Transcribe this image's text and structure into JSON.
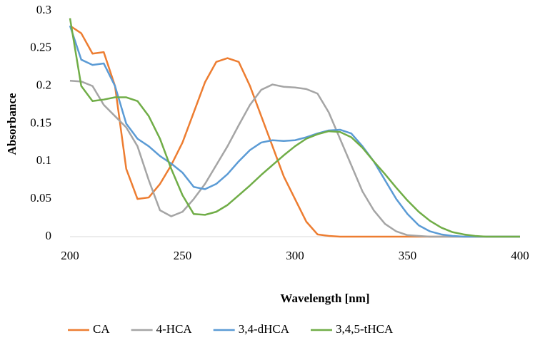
{
  "chart_data": {
    "type": "line",
    "x_label": "Wavelength [nm]",
    "y_label": "Absorbance",
    "x": [
      200,
      205,
      210,
      215,
      220,
      225,
      230,
      235,
      240,
      245,
      250,
      255,
      260,
      265,
      270,
      275,
      280,
      285,
      290,
      295,
      300,
      305,
      310,
      315,
      320,
      325,
      330,
      335,
      340,
      345,
      350,
      355,
      360,
      365,
      370,
      375,
      380,
      385,
      390,
      395,
      400
    ],
    "series": [
      {
        "name": "CA",
        "color": "#ed7d31",
        "values": [
          0.28,
          0.27,
          0.243,
          0.245,
          0.2,
          0.09,
          0.05,
          0.052,
          0.07,
          0.095,
          0.125,
          0.165,
          0.205,
          0.232,
          0.237,
          0.232,
          0.2,
          0.16,
          0.12,
          0.08,
          0.05,
          0.02,
          0.003,
          0.001,
          0,
          0,
          0,
          0,
          0,
          0,
          0,
          0,
          0,
          0,
          0,
          0,
          0,
          0,
          0,
          0,
          0
        ]
      },
      {
        "name": "4-HCA",
        "color": "#a5a5a5",
        "values": [
          0.207,
          0.206,
          0.2,
          0.175,
          0.16,
          0.145,
          0.12,
          0.075,
          0.035,
          0.027,
          0.033,
          0.05,
          0.07,
          0.095,
          0.12,
          0.148,
          0.175,
          0.195,
          0.202,
          0.199,
          0.198,
          0.196,
          0.19,
          0.165,
          0.13,
          0.095,
          0.06,
          0.035,
          0.017,
          0.007,
          0.002,
          0.001,
          0,
          0,
          0,
          0,
          0,
          0,
          0,
          0,
          0
        ]
      },
      {
        "name": "3,4-dHCA",
        "color": "#5b9bd5",
        "values": [
          0.28,
          0.235,
          0.228,
          0.23,
          0.2,
          0.15,
          0.13,
          0.12,
          0.107,
          0.097,
          0.085,
          0.066,
          0.063,
          0.07,
          0.083,
          0.1,
          0.115,
          0.125,
          0.128,
          0.127,
          0.128,
          0.132,
          0.137,
          0.141,
          0.142,
          0.137,
          0.12,
          0.1,
          0.075,
          0.05,
          0.03,
          0.015,
          0.007,
          0.003,
          0.001,
          0,
          0,
          0,
          0,
          0,
          0
        ]
      },
      {
        "name": "3,4,5-tHCA",
        "color": "#70ad47",
        "values": [
          0.29,
          0.2,
          0.18,
          0.182,
          0.185,
          0.185,
          0.18,
          0.16,
          0.13,
          0.09,
          0.055,
          0.03,
          0.029,
          0.033,
          0.042,
          0.055,
          0.068,
          0.082,
          0.095,
          0.108,
          0.12,
          0.13,
          0.136,
          0.14,
          0.139,
          0.132,
          0.118,
          0.1,
          0.083,
          0.065,
          0.048,
          0.033,
          0.021,
          0.012,
          0.006,
          0.003,
          0.001,
          0,
          0,
          0,
          0
        ]
      }
    ],
    "xlim": [
      200,
      400
    ],
    "xticks": [
      200,
      250,
      300,
      350,
      400
    ],
    "ylim": [
      0,
      0.3
    ],
    "yticks": [
      0,
      0.05,
      0.1,
      0.15,
      0.2,
      0.25,
      0.3
    ],
    "grid": false,
    "legend": "bottom"
  }
}
